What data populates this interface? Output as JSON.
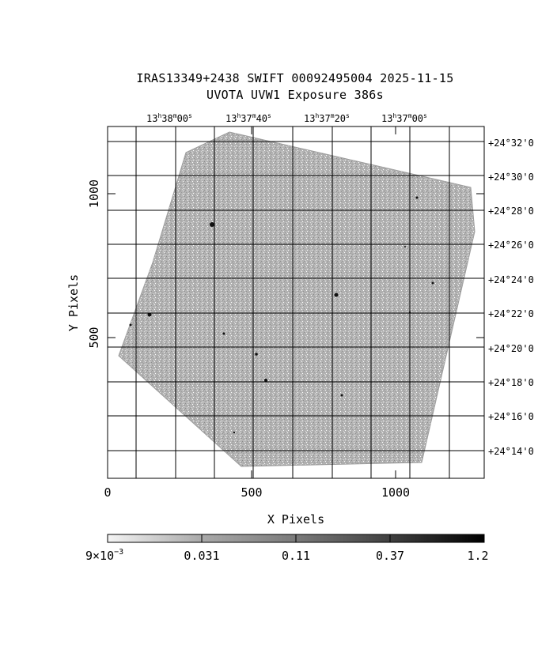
{
  "title_line1": "IRAS13349+2438 SWIFT 00092495004 2025-11-15",
  "title_line2": "UVOTA UVW1 Exposure        386s",
  "xlabel": "X Pixels",
  "ylabel": "Y Pixels",
  "x_ticks": [
    "0",
    "500",
    "1000"
  ],
  "y_ticks": [
    "500",
    "1000"
  ],
  "ra_ticks": [
    {
      "h": "13",
      "m": "38",
      "s": "00"
    },
    {
      "h": "13",
      "m": "37",
      "s": "40"
    },
    {
      "h": "13",
      "m": "37",
      "s": "20"
    },
    {
      "h": "13",
      "m": "37",
      "s": "00"
    }
  ],
  "dec_ticks": [
    "+24°32'0",
    "+24°30'0",
    "+24°28'0",
    "+24°26'0",
    "+24°24'0",
    "+24°22'0",
    "+24°20'0",
    "+24°18'0",
    "+24°16'0",
    "+24°14'0"
  ],
  "colorbar_labels": {
    "first_mantissa": "9×10",
    "first_exponent": "−3",
    "rest": [
      "0.031",
      "0.11",
      "0.37",
      "1.2"
    ]
  },
  "colors": {
    "image_gray": "#a8a8a8",
    "grid": "#000000"
  }
}
